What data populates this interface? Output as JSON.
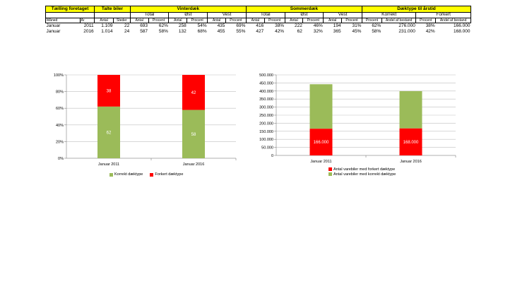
{
  "table": {
    "group_headers": [
      "Tælling foretaget",
      "Talte biler",
      "Vinterdæk",
      "Sommerdæk",
      "Dæktype til årstid"
    ],
    "sub_headers": [
      "Total",
      "Øst",
      "Vest",
      "Total",
      "Øst",
      "Vest",
      "Korrekt",
      "Forkert"
    ],
    "col_headers": [
      "Måned",
      "År",
      "Antal",
      "Steder",
      "Antal",
      "Procent",
      "Antal",
      "Procent",
      "Antal",
      "Procent",
      "Antal",
      "Procent",
      "Antal",
      "Procent",
      "Antal",
      "Procent",
      "Procent",
      "Andel af bestand",
      "Procent",
      "Andel af bestand"
    ],
    "rows": [
      [
        "Januar",
        "2011",
        "1.109",
        "22",
        "693",
        "62%",
        "258",
        "54%",
        "435",
        "69%",
        "416",
        "38%",
        "222",
        "46%",
        "194",
        "31%",
        "62%",
        "276.000",
        "38%",
        "166.000"
      ],
      [
        "Januar",
        "2016",
        "1.014",
        "24",
        "587",
        "58%",
        "132",
        "68%",
        "455",
        "55%",
        "427",
        "42%",
        "62",
        "32%",
        "365",
        "45%",
        "58%",
        "231.000",
        "42%",
        "168.000"
      ]
    ]
  },
  "colors": {
    "green": "#9bbb59",
    "red": "#ff0000",
    "header_yellow": "#ffff00"
  },
  "chart_data": [
    {
      "type": "bar",
      "stacked": true,
      "percent_stacked": true,
      "categories": [
        "Januar 2011",
        "Januar 2016"
      ],
      "series": [
        {
          "name": "Korrekt dæktype",
          "values": [
            62,
            58
          ],
          "color": "#9bbb59"
        },
        {
          "name": "Forkert dæktype",
          "values": [
            38,
            42
          ],
          "color": "#ff0000"
        }
      ],
      "yticks": [
        "0%",
        "20%",
        "40%",
        "60%",
        "80%",
        "100%"
      ],
      "ylim": [
        0,
        100
      ],
      "legend_position": "bottom",
      "grid": true
    },
    {
      "type": "bar",
      "stacked": true,
      "categories": [
        "Januar 2011",
        "Januar 2016"
      ],
      "series": [
        {
          "name": "Antal varebiler med forkert dæktype",
          "values": [
            166000,
            168000
          ],
          "labels": [
            "166.000",
            "168.000"
          ],
          "color": "#ff0000"
        },
        {
          "name": "Antal varebiler med korrekt dæktype",
          "values": [
            276000,
            231000
          ],
          "color": "#9bbb59"
        }
      ],
      "yticks": [
        "0",
        "50.000",
        "100.000",
        "150.000",
        "200.000",
        "250.000",
        "300.000",
        "350.000",
        "400.000",
        "450.000",
        "500.000"
      ],
      "ylim": [
        0,
        500000
      ],
      "legend_position": "bottom",
      "grid": true
    }
  ]
}
